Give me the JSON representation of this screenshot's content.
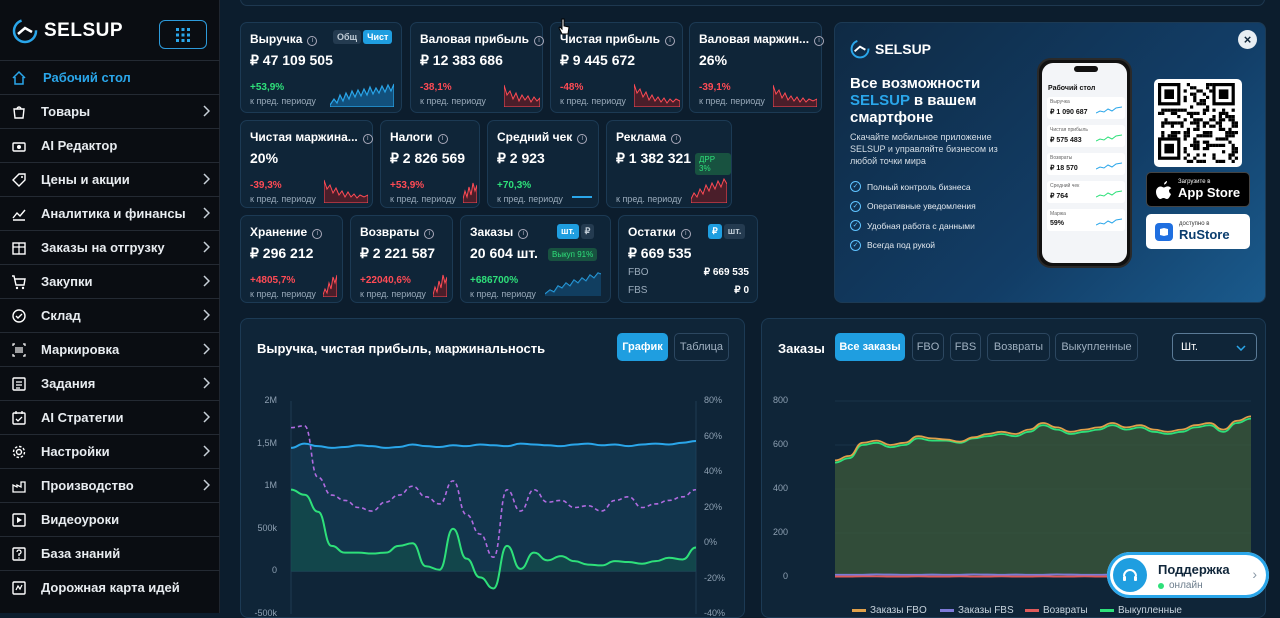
{
  "brand": {
    "name": "SELSUP"
  },
  "sidebar": {
    "items": [
      {
        "label": "Рабочий стол",
        "icon": "home-icon",
        "active": true
      },
      {
        "label": "Товары",
        "icon": "bag-icon",
        "chev": true
      },
      {
        "label": "AI Редактор",
        "icon": "camera-icon"
      },
      {
        "label": "Цены и акции",
        "icon": "tag-icon",
        "chev": true
      },
      {
        "label": "Аналитика и финансы",
        "icon": "chart-line-icon",
        "chev": true
      },
      {
        "label": "Заказы на отгрузку",
        "icon": "box-icon",
        "chev": true
      },
      {
        "label": "Закупки",
        "icon": "cart-icon",
        "chev": true
      },
      {
        "label": "Склад",
        "icon": "check-circle-icon",
        "chev": true
      },
      {
        "label": "Маркировка",
        "icon": "barcode-icon",
        "chev": true
      },
      {
        "label": "Задания",
        "icon": "list-icon",
        "chev": true
      },
      {
        "label": "AI Стратегии",
        "icon": "calendar-check-icon",
        "chev": true
      },
      {
        "label": "Настройки",
        "icon": "gear-icon",
        "chev": true
      },
      {
        "label": "Производство",
        "icon": "factory-icon",
        "chev": true
      },
      {
        "label": "Видеоуроки",
        "icon": "play-icon"
      },
      {
        "label": "База знаний",
        "icon": "question-icon"
      },
      {
        "label": "Дорожная карта идей",
        "icon": "map-icon"
      }
    ]
  },
  "kpi": {
    "revenue": {
      "title": "Выручка",
      "value": "₽ 47 109 505",
      "delta": "+53,9%",
      "sub": "к пред. периоду",
      "tog1": "Общ",
      "tog2": "Чист"
    },
    "gross_profit": {
      "title": "Валовая прибыль",
      "value": "₽ 12 383 686",
      "delta": "-38,1%",
      "sub": "к пред. периоду"
    },
    "net_profit": {
      "title": "Чистая прибыль",
      "value": "₽ 9 445 672",
      "delta": "-48%",
      "sub": "к пред. периоду"
    },
    "gross_margin": {
      "title": "Валовая маржин...",
      "value": "26%",
      "delta": "-39,1%",
      "sub": "к пред. периоду"
    },
    "net_margin": {
      "title": "Чистая маржина...",
      "value": "20%",
      "delta": "-39,3%",
      "sub": "к пред. периоду"
    },
    "taxes": {
      "title": "Налоги",
      "value": "₽ 2 826 569",
      "delta": "+53,9%",
      "sub": "к пред. периоду"
    },
    "avg_check": {
      "title": "Средний чек",
      "value": "₽ 2 923",
      "delta": "+70,3%",
      "sub": "к пред. периоду"
    },
    "ads": {
      "title": "Реклама",
      "value": "₽ 1 382 321",
      "badge": "ДРР 3%",
      "sub": "к пред. периоду"
    },
    "storage": {
      "title": "Хранение",
      "value": "₽ 296 212",
      "delta": "+4805,7%",
      "sub": "к пред. периоду"
    },
    "returns": {
      "title": "Возвраты",
      "value": "₽ 2 221 587",
      "delta": "+22040,6%",
      "sub": "к пред. периоду"
    },
    "orders": {
      "title": "Заказы",
      "value": "20 604 шт.",
      "delta": "+686700%",
      "sub": "к пред. периоду",
      "badge": "Выкуп 91%",
      "tog1": "шт.",
      "tog2": "₽"
    },
    "stock": {
      "title": "Остатки",
      "value": "₽ 669 535",
      "fbo_label": "FBO",
      "fbo_value": "₽ 669 535",
      "fbs_label": "FBS",
      "fbs_value": "₽ 0",
      "tog1": "₽",
      "tog2": "шт."
    }
  },
  "promo": {
    "title_a": "Все возможности ",
    "title_b": "SELSUP",
    "title_c": " в вашем смартфоне",
    "subtitle": "Скачайте мобильное приложение SELSUP и управляйте бизнесом из любой точки мира",
    "features": [
      "Полный контроль бизнеса",
      "Оперативные уведомления",
      "Удобная работа с данными",
      "Всегда под рукой"
    ],
    "phone": {
      "title": "Рабочий стол",
      "rows": [
        {
          "a": "Выручка",
          "b": "₽ 1 090 687"
        },
        {
          "a": "Чистая прибыль",
          "b": "₽ 575 483"
        },
        {
          "a": "Возвраты",
          "b": "₽ 18 570"
        },
        {
          "a": "Средний чек",
          "b": "₽ 764"
        },
        {
          "a": "Маржа",
          "b": "59%"
        }
      ]
    },
    "appstore_small": "Загрузите в",
    "appstore_big": "App Store",
    "rustore_small": "доступно в",
    "rustore_big": "RuStore"
  },
  "revenue_chart": {
    "title": "Выручка, чистая прибыль, маржинальность",
    "btn_chart": "График",
    "btn_table": "Таблица",
    "left_ticks": [
      "2M",
      "1,5M",
      "1M",
      "500k",
      "0",
      "-500k"
    ],
    "right_ticks": [
      "80%",
      "60%",
      "40%",
      "20%",
      "0%",
      "-20%",
      "-40%"
    ]
  },
  "orders_chart": {
    "title": "Заказы",
    "tabs": [
      "Все заказы",
      "FBO",
      "FBS",
      "Возвраты",
      "Выкупленные"
    ],
    "unit": "Шт.",
    "y_ticks": [
      "800",
      "600",
      "400",
      "200",
      "0"
    ],
    "legend": [
      "Заказы FBO",
      "Заказы FBS",
      "Возвраты",
      "Выкупленные"
    ]
  },
  "support": {
    "title": "Поддержка",
    "status": "онлайн"
  },
  "chart_data": [
    {
      "type": "line",
      "title": "Выручка, чистая прибыль, маржинальность",
      "ylim": [
        -500000,
        2000000
      ],
      "y2lim": [
        -40,
        80
      ],
      "series": [
        {
          "values": [
            1450000,
            1500000,
            1470000,
            1450000,
            1460000,
            1480000,
            1470000,
            1450000,
            1460000,
            1490000,
            1470000,
            1460000,
            1480000,
            1470000,
            1490000,
            1480000,
            1470000,
            1500000,
            1490000,
            1480000,
            1470000,
            1490000,
            1500000,
            1480000,
            1490000,
            1470000,
            1490000,
            1500000,
            1490000,
            1510000,
            1530000
          ]
        },
        {
          "values": [
            960000,
            900000,
            700000,
            300000,
            220000,
            220000,
            210000,
            220000,
            300000,
            330000,
            60000,
            20000,
            500000,
            150000,
            -70000,
            -200000,
            300000,
            30000,
            220000,
            130000,
            180000,
            120000,
            80000,
            70000,
            120000,
            110000,
            90000,
            120000,
            160000,
            140000,
            280000
          ]
        },
        {
          "values": [
            65,
            66,
            37,
            27,
            24,
            20,
            18,
            23,
            27,
            32,
            26,
            22,
            35,
            16,
            5,
            -8,
            30,
            18,
            30,
            23,
            24,
            20,
            21,
            18,
            24,
            26,
            20,
            22,
            24,
            26,
            30
          ]
        }
      ]
    },
    {
      "type": "area",
      "title": "Заказы",
      "ylim": [
        0,
        800
      ],
      "series": [
        {
          "name": "Выкупленные",
          "values": [
            520,
            540,
            600,
            610,
            590,
            600,
            630,
            620,
            620,
            610,
            630,
            640,
            650,
            640,
            660,
            690,
            670,
            650,
            660,
            670,
            690,
            670,
            680,
            660,
            650,
            660,
            680,
            690,
            660,
            700,
            720
          ]
        },
        {
          "name": "Заказы FBO",
          "values": [
            530,
            550,
            610,
            620,
            600,
            610,
            640,
            630,
            625,
            615,
            635,
            650,
            660,
            650,
            670,
            700,
            680,
            660,
            670,
            680,
            700,
            680,
            690,
            670,
            660,
            670,
            690,
            700,
            670,
            710,
            730
          ]
        },
        {
          "name": "Заказы FBS",
          "values": [
            10,
            10,
            10,
            12,
            11,
            10,
            10,
            11,
            10,
            10,
            12,
            11,
            10,
            11,
            10,
            10,
            12,
            11,
            10,
            10,
            11,
            10,
            10,
            12,
            11,
            10,
            10,
            11,
            10,
            10,
            10
          ]
        },
        {
          "name": "Возвраты",
          "values": [
            2,
            2,
            3,
            3,
            2,
            2,
            3,
            2,
            2,
            3,
            2,
            2,
            3,
            2,
            2,
            3,
            2,
            2,
            3,
            2,
            2,
            3,
            2,
            2,
            3,
            2,
            2,
            3,
            2,
            2,
            3
          ]
        }
      ]
    }
  ]
}
